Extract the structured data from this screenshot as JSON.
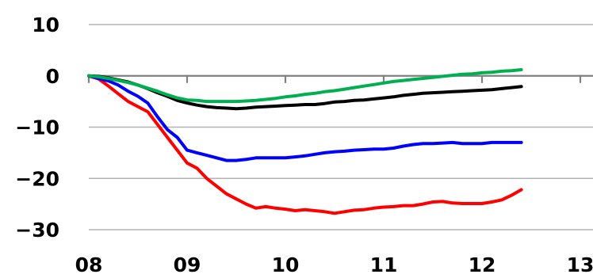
{
  "chart_data": {
    "type": "line",
    "title": "",
    "xlabel": "",
    "ylabel": "",
    "xlim": [
      2008,
      2013
    ],
    "ylim": [
      -30,
      10
    ],
    "x_ticks": [
      {
        "value": 2008,
        "label": "08"
      },
      {
        "value": 2009,
        "label": "09"
      },
      {
        "value": 2010,
        "label": "10"
      },
      {
        "value": 2011,
        "label": "11"
      },
      {
        "value": 2012,
        "label": "12"
      },
      {
        "value": 2013,
        "label": "13"
      }
    ],
    "y_ticks": [
      {
        "value": 10,
        "label": "10"
      },
      {
        "value": 0,
        "label": "0"
      },
      {
        "value": -10,
        "label": "−10"
      },
      {
        "value": -20,
        "label": "−20"
      },
      {
        "value": -30,
        "label": "−30"
      }
    ],
    "grid": "horizontal",
    "series": [
      {
        "color": "#ff0000",
        "points": [
          [
            2008.0,
            0
          ],
          [
            2008.1,
            -0.6
          ],
          [
            2008.2,
            -2
          ],
          [
            2008.3,
            -3.5
          ],
          [
            2008.4,
            -5
          ],
          [
            2008.5,
            -6
          ],
          [
            2008.6,
            -7
          ],
          [
            2008.7,
            -9.5
          ],
          [
            2008.8,
            -12
          ],
          [
            2008.9,
            -14.5
          ],
          [
            2009.0,
            -17
          ],
          [
            2009.1,
            -18
          ],
          [
            2009.2,
            -20
          ],
          [
            2009.3,
            -21.5
          ],
          [
            2009.4,
            -23
          ],
          [
            2009.5,
            -24
          ],
          [
            2009.6,
            -25
          ],
          [
            2009.7,
            -25.8
          ],
          [
            2009.8,
            -25.5
          ],
          [
            2009.9,
            -25.8
          ],
          [
            2010.0,
            -26
          ],
          [
            2010.1,
            -26.3
          ],
          [
            2010.2,
            -26.1
          ],
          [
            2010.3,
            -26.3
          ],
          [
            2010.4,
            -26.5
          ],
          [
            2010.5,
            -26.8
          ],
          [
            2010.6,
            -26.5
          ],
          [
            2010.7,
            -26.2
          ],
          [
            2010.8,
            -26.1
          ],
          [
            2010.9,
            -25.8
          ],
          [
            2011.0,
            -25.6
          ],
          [
            2011.1,
            -25.5
          ],
          [
            2011.2,
            -25.3
          ],
          [
            2011.3,
            -25.3
          ],
          [
            2011.4,
            -25
          ],
          [
            2011.5,
            -24.6
          ],
          [
            2011.6,
            -24.5
          ],
          [
            2011.7,
            -24.8
          ],
          [
            2011.8,
            -24.9
          ],
          [
            2011.9,
            -24.9
          ],
          [
            2012.0,
            -24.9
          ],
          [
            2012.1,
            -24.6
          ],
          [
            2012.2,
            -24.2
          ],
          [
            2012.3,
            -23.3
          ],
          [
            2012.4,
            -22.2
          ]
        ]
      },
      {
        "color": "#0000ff",
        "points": [
          [
            2008.0,
            0
          ],
          [
            2008.1,
            -0.5
          ],
          [
            2008.2,
            -1
          ],
          [
            2008.3,
            -1.8
          ],
          [
            2008.4,
            -3
          ],
          [
            2008.5,
            -4
          ],
          [
            2008.6,
            -5.3
          ],
          [
            2008.7,
            -8
          ],
          [
            2008.8,
            -10.5
          ],
          [
            2008.9,
            -12
          ],
          [
            2009.0,
            -14.5
          ],
          [
            2009.1,
            -15
          ],
          [
            2009.2,
            -15.5
          ],
          [
            2009.3,
            -16
          ],
          [
            2009.4,
            -16.5
          ],
          [
            2009.5,
            -16.5
          ],
          [
            2009.6,
            -16.3
          ],
          [
            2009.7,
            -16
          ],
          [
            2009.8,
            -16
          ],
          [
            2009.9,
            -16
          ],
          [
            2010.0,
            -16
          ],
          [
            2010.1,
            -15.8
          ],
          [
            2010.2,
            -15.6
          ],
          [
            2010.3,
            -15.3
          ],
          [
            2010.4,
            -15
          ],
          [
            2010.5,
            -14.8
          ],
          [
            2010.6,
            -14.7
          ],
          [
            2010.7,
            -14.5
          ],
          [
            2010.8,
            -14.4
          ],
          [
            2010.9,
            -14.3
          ],
          [
            2011.0,
            -14.3
          ],
          [
            2011.1,
            -14.1
          ],
          [
            2011.2,
            -13.7
          ],
          [
            2011.3,
            -13.4
          ],
          [
            2011.4,
            -13.2
          ],
          [
            2011.5,
            -13.2
          ],
          [
            2011.6,
            -13.1
          ],
          [
            2011.7,
            -13
          ],
          [
            2011.8,
            -13.2
          ],
          [
            2011.9,
            -13.2
          ],
          [
            2012.0,
            -13.2
          ],
          [
            2012.1,
            -13
          ],
          [
            2012.2,
            -13
          ],
          [
            2012.3,
            -13
          ],
          [
            2012.4,
            -13
          ]
        ]
      },
      {
        "color": "#000000",
        "points": [
          [
            2008.0,
            0
          ],
          [
            2008.1,
            -0.1
          ],
          [
            2008.2,
            -0.4
          ],
          [
            2008.3,
            -0.8
          ],
          [
            2008.4,
            -1.2
          ],
          [
            2008.5,
            -1.8
          ],
          [
            2008.6,
            -2.5
          ],
          [
            2008.7,
            -3.3
          ],
          [
            2008.8,
            -4
          ],
          [
            2008.9,
            -4.8
          ],
          [
            2009.0,
            -5.3
          ],
          [
            2009.1,
            -5.7
          ],
          [
            2009.2,
            -6
          ],
          [
            2009.3,
            -6.2
          ],
          [
            2009.4,
            -6.3
          ],
          [
            2009.5,
            -6.4
          ],
          [
            2009.6,
            -6.3
          ],
          [
            2009.7,
            -6.1
          ],
          [
            2009.8,
            -6
          ],
          [
            2009.9,
            -5.9
          ],
          [
            2010.0,
            -5.8
          ],
          [
            2010.1,
            -5.7
          ],
          [
            2010.2,
            -5.6
          ],
          [
            2010.3,
            -5.6
          ],
          [
            2010.4,
            -5.4
          ],
          [
            2010.5,
            -5.1
          ],
          [
            2010.6,
            -5
          ],
          [
            2010.7,
            -4.8
          ],
          [
            2010.8,
            -4.7
          ],
          [
            2010.9,
            -4.5
          ],
          [
            2011.0,
            -4.3
          ],
          [
            2011.1,
            -4.1
          ],
          [
            2011.2,
            -3.8
          ],
          [
            2011.3,
            -3.6
          ],
          [
            2011.4,
            -3.4
          ],
          [
            2011.5,
            -3.3
          ],
          [
            2011.6,
            -3.2
          ],
          [
            2011.7,
            -3.1
          ],
          [
            2011.8,
            -3
          ],
          [
            2011.9,
            -2.9
          ],
          [
            2012.0,
            -2.8
          ],
          [
            2012.1,
            -2.7
          ],
          [
            2012.2,
            -2.5
          ],
          [
            2012.3,
            -2.3
          ],
          [
            2012.4,
            -2.1
          ]
        ]
      },
      {
        "color": "#00b050",
        "points": [
          [
            2008.0,
            0
          ],
          [
            2008.1,
            -0.2
          ],
          [
            2008.2,
            -0.5
          ],
          [
            2008.3,
            -0.9
          ],
          [
            2008.4,
            -1.3
          ],
          [
            2008.5,
            -1.8
          ],
          [
            2008.6,
            -2.4
          ],
          [
            2008.7,
            -3
          ],
          [
            2008.8,
            -3.7
          ],
          [
            2008.9,
            -4.3
          ],
          [
            2009.0,
            -4.7
          ],
          [
            2009.1,
            -4.8
          ],
          [
            2009.2,
            -5
          ],
          [
            2009.3,
            -5
          ],
          [
            2009.4,
            -5
          ],
          [
            2009.5,
            -5
          ],
          [
            2009.6,
            -4.9
          ],
          [
            2009.7,
            -4.8
          ],
          [
            2009.8,
            -4.6
          ],
          [
            2009.9,
            -4.4
          ],
          [
            2010.0,
            -4.1
          ],
          [
            2010.1,
            -3.9
          ],
          [
            2010.2,
            -3.6
          ],
          [
            2010.3,
            -3.4
          ],
          [
            2010.4,
            -3.1
          ],
          [
            2010.5,
            -2.9
          ],
          [
            2010.6,
            -2.6
          ],
          [
            2010.7,
            -2.3
          ],
          [
            2010.8,
            -2
          ],
          [
            2010.9,
            -1.7
          ],
          [
            2011.0,
            -1.4
          ],
          [
            2011.1,
            -1.1
          ],
          [
            2011.2,
            -0.9
          ],
          [
            2011.3,
            -0.7
          ],
          [
            2011.4,
            -0.5
          ],
          [
            2011.5,
            -0.3
          ],
          [
            2011.6,
            -0.1
          ],
          [
            2011.7,
            0.1
          ],
          [
            2011.8,
            0.3
          ],
          [
            2011.9,
            0.4
          ],
          [
            2012.0,
            0.6
          ],
          [
            2012.1,
            0.7
          ],
          [
            2012.2,
            0.9
          ],
          [
            2012.3,
            1.0
          ],
          [
            2012.4,
            1.2
          ]
        ]
      }
    ]
  }
}
